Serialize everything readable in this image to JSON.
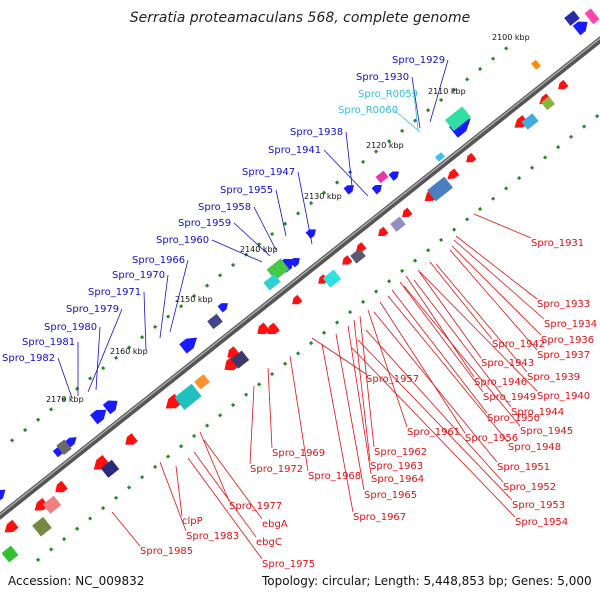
{
  "title": "Serratia proteamaculans 568, complete genome",
  "footer": {
    "accession": "Accession: NC_009832",
    "summary": "Topology: circular; Length: 5,448,853 bp; Genes: 5,000"
  },
  "colors": {
    "backbone": "#777777",
    "tick": "#2a8a2a",
    "label_forward": "#1010c8",
    "label_rna": "#33bbdd",
    "label_reverse": "#e01010",
    "feature_forward": "#1a1aff",
    "feature_reverse": "#ff1010",
    "ruler_text": "#111111"
  },
  "ruler": [
    "2100 kbp",
    "2110 kbp",
    "2120 kbp",
    "2130 kbp",
    "2140 kbp",
    "2150 kbp",
    "2160 kbp",
    "2170 kbp"
  ],
  "labels_top": [
    {
      "text": "Spro_1929",
      "kind": "fwd"
    },
    {
      "text": "Spro_1930",
      "kind": "fwd"
    },
    {
      "text": "Spro_R0059",
      "kind": "rna"
    },
    {
      "text": "Spro_R0060",
      "kind": "rna"
    },
    {
      "text": "Spro_1938",
      "kind": "fwd"
    },
    {
      "text": "Spro_1941",
      "kind": "fwd"
    },
    {
      "text": "Spro_1947",
      "kind": "fwd"
    },
    {
      "text": "Spro_1955",
      "kind": "fwd"
    },
    {
      "text": "Spro_1958",
      "kind": "fwd"
    },
    {
      "text": "Spro_1959",
      "kind": "fwd"
    },
    {
      "text": "Spro_1960",
      "kind": "fwd"
    },
    {
      "text": "Spro_1966",
      "kind": "fwd"
    },
    {
      "text": "Spro_1970",
      "kind": "fwd"
    },
    {
      "text": "Spro_1971",
      "kind": "fwd"
    },
    {
      "text": "Spro_1979",
      "kind": "fwd"
    },
    {
      "text": "Spro_1980",
      "kind": "fwd"
    },
    {
      "text": "Spro_1981",
      "kind": "fwd"
    },
    {
      "text": "Spro_1982",
      "kind": "fwd"
    }
  ],
  "labels_bottom": [
    "Spro_1931",
    "Spro_1933",
    "Spro_1934",
    "Spro_1936",
    "Spro_1937",
    "Spro_1942",
    "Spro_1939",
    "Spro_1943",
    "Spro_1940",
    "Spro_1946",
    "Spro_1944",
    "Spro_1949",
    "Spro_1945",
    "Spro_1950",
    "Spro_1957",
    "Spro_1948",
    "Spro_1956",
    "Spro_1961",
    "Spro_1951",
    "Spro_1962",
    "Spro_1963",
    "Spro_1969",
    "Spro_1964",
    "Spro_1952",
    "Spro_1968",
    "Spro_1972",
    "Spro_1965",
    "Spro_1953",
    "Spro_1967",
    "Spro_1954",
    "Spro_1977",
    "ebgA",
    "clpP",
    "Spro_1983",
    "ebgC",
    "Spro_1985",
    "Spro_1975"
  ]
}
